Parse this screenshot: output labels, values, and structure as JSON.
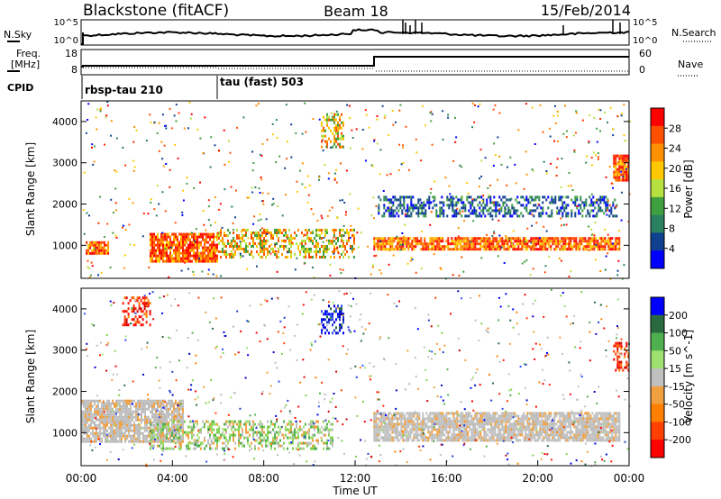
{
  "header": {
    "station": "Blackstone (fitACF)",
    "beam": "Beam 18",
    "date": "15/Feb/2014"
  },
  "top_panels": {
    "nsky_label": "N.Sky",
    "nsky_ticks": [
      "10^5",
      "10^0"
    ],
    "nsearch_label": "N.Search",
    "nsearch_ticks": [
      "10^5",
      "10^0"
    ],
    "freq_label_1": "Freq.",
    "freq_label_2": "[MHz]",
    "freq_ticks": [
      "18",
      "8"
    ],
    "nave_label": "Nave",
    "nave_ticks": [
      "60",
      "0"
    ],
    "cpid_label": "CPID",
    "cpid_modes": [
      "rbsp-tau 210",
      "tau (fast) 503"
    ]
  },
  "chart_data": [
    {
      "type": "heatmap",
      "panel": "power",
      "ylabel": "Slant Range [km]",
      "xlabel": "",
      "ylim": [
        200,
        4500
      ],
      "yticks": [
        "1000",
        "2000",
        "3000",
        "4000"
      ],
      "colorbar_label": "Power [dB]",
      "colorbar_ticks": [
        "28",
        "24",
        "20",
        "16",
        "12",
        "8",
        "4"
      ],
      "colorbar_colors": [
        "#ff0000",
        "#ff5000",
        "#ff9000",
        "#ffc800",
        "#b4e040",
        "#40a040",
        "#2a8060",
        "#104090",
        "#0000ff"
      ],
      "time_range_hours": [
        0,
        24
      ],
      "features_range_km": [
        {
          "t": [
            0.2,
            1.2
          ],
          "r": [
            800,
            1100
          ],
          "level": "high"
        },
        {
          "t": [
            3.0,
            6.0
          ],
          "r": [
            620,
            1300
          ],
          "level": "high"
        },
        {
          "t": [
            6.0,
            12.0
          ],
          "r": [
            700,
            1400
          ],
          "level": "medium"
        },
        {
          "t": [
            12.8,
            23.6
          ],
          "r": [
            900,
            1200
          ],
          "level": "high"
        },
        {
          "t": [
            13.0,
            23.5
          ],
          "r": [
            1700,
            2200
          ],
          "level": "low"
        },
        {
          "t": [
            10.5,
            11.5
          ],
          "r": [
            3400,
            4200
          ],
          "level": "medium"
        },
        {
          "t": [
            23.3,
            24.0
          ],
          "r": [
            2600,
            3200
          ],
          "level": "high"
        }
      ]
    },
    {
      "type": "heatmap",
      "panel": "velocity",
      "ylabel": "Slant Range [km]",
      "xlabel": "Time UT",
      "ylim": [
        200,
        4500
      ],
      "yticks": [
        "1000",
        "2000",
        "3000",
        "4000"
      ],
      "xticks": [
        "00:00",
        "04:00",
        "08:00",
        "12:00",
        "16:00",
        "20:00",
        "00:00"
      ],
      "colorbar_label": "Velocity [m s^-1]",
      "colorbar_ticks": [
        "200",
        "100",
        "50",
        "15",
        "-15",
        "-50",
        "-100",
        "-200"
      ],
      "colorbar_colors": [
        "#0000ff",
        "#2a6a40",
        "#50b050",
        "#a0e070",
        "#c0c0c0",
        "#f0a040",
        "#ff8000",
        "#ff4000",
        "#ff0000"
      ],
      "time_range_hours": [
        0,
        24
      ],
      "features_range_km": [
        {
          "t": [
            0.0,
            4.5
          ],
          "r": [
            800,
            1800
          ],
          "level": "ground"
        },
        {
          "t": [
            3.0,
            11.0
          ],
          "r": [
            600,
            1300
          ],
          "level": "green"
        },
        {
          "t": [
            12.8,
            23.6
          ],
          "r": [
            800,
            1500
          ],
          "level": "ground"
        },
        {
          "t": [
            10.5,
            11.5
          ],
          "r": [
            3400,
            4100
          ],
          "level": "blue"
        },
        {
          "t": [
            1.8,
            3.0
          ],
          "r": [
            3600,
            4300
          ],
          "level": "red"
        },
        {
          "t": [
            23.3,
            24.0
          ],
          "r": [
            2500,
            3200
          ],
          "level": "red"
        }
      ]
    }
  ]
}
